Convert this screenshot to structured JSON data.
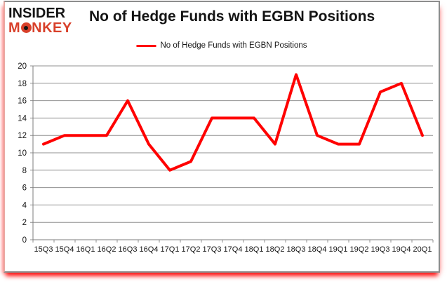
{
  "logo": {
    "line1": "INSIDER",
    "line2_pre": "M",
    "line2_o": "O",
    "line2_post": "NKEY",
    "line1_color": "#141414",
    "line2_color": "#d8402a"
  },
  "chart_data": {
    "type": "line",
    "title": "No of Hedge Funds with EGBN Positions",
    "categories": [
      "15Q3",
      "15Q4",
      "16Q1",
      "16Q2",
      "16Q3",
      "16Q4",
      "17Q1",
      "17Q2",
      "17Q3",
      "17Q4",
      "18Q1",
      "18Q2",
      "18Q3",
      "18Q4",
      "19Q1",
      "19Q2",
      "19Q3",
      "19Q4",
      "20Q1"
    ],
    "series": [
      {
        "name": "No of Hedge Funds with EGBN Positions",
        "values": [
          11,
          12,
          12,
          12,
          16,
          11,
          8,
          9,
          14,
          14,
          14,
          11,
          19,
          12,
          11,
          11,
          17,
          18,
          12
        ],
        "color": "#ff0000"
      }
    ],
    "ylim": [
      0,
      20
    ],
    "ytick_step": 2,
    "grid": true,
    "legend_position": "top-center",
    "xlabel": "",
    "ylabel": ""
  },
  "colors": {
    "gridline": "#909090",
    "axis": "#7d7d7d",
    "tick_label": "#141414",
    "frame_border": "#8d8d8d",
    "bottom_glow": "#ff0000"
  }
}
